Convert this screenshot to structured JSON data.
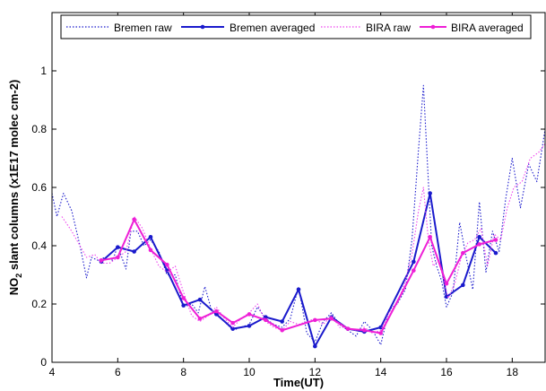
{
  "chart_data": {
    "type": "line",
    "xlabel": "Time(UT)",
    "ylabel_main": "NO",
    "ylabel_sub": "2",
    "ylabel_rest": " slant columns (x1E17 molec cm-2)",
    "xlim": [
      4,
      19
    ],
    "ylim": [
      0,
      1.2
    ],
    "xticks": [
      4,
      6,
      8,
      10,
      12,
      14,
      16,
      18
    ],
    "yticks": [
      0,
      0.2,
      0.4,
      0.6,
      0.8,
      1
    ],
    "xtick_labels": [
      "4",
      "6",
      "8",
      "10",
      "12",
      "14",
      "16",
      "18"
    ],
    "ytick_labels": [
      "0",
      "0.2",
      "0.4",
      "0.6",
      "0.8",
      "1"
    ],
    "grid": false,
    "legend_position": "top",
    "series": [
      {
        "name": "Bremen raw",
        "color": "#1a1acc",
        "style": "dotted",
        "marker": false,
        "x": [
          4.0,
          4.15,
          4.35,
          4.6,
          4.85,
          5.05,
          5.2,
          5.4,
          5.6,
          5.85,
          6.0,
          6.25,
          6.4,
          6.6,
          6.8,
          7.0,
          7.25,
          7.5,
          7.75,
          8.0,
          8.25,
          8.45,
          8.65,
          8.85,
          9.0,
          9.25,
          9.5,
          9.75,
          10.0,
          10.25,
          10.5,
          10.75,
          11.0,
          11.25,
          11.5,
          11.75,
          12.0,
          12.25,
          12.5,
          12.75,
          13.0,
          13.25,
          13.5,
          13.75,
          14.0,
          14.25,
          14.5,
          14.75,
          14.95,
          15.15,
          15.3,
          15.45,
          15.55,
          15.7,
          15.85,
          16.0,
          16.2,
          16.4,
          16.6,
          16.8,
          17.0,
          17.2,
          17.4,
          17.6,
          17.8,
          18.0,
          18.25,
          18.5,
          18.75,
          19.0
        ],
        "y": [
          0.58,
          0.5,
          0.58,
          0.52,
          0.4,
          0.29,
          0.36,
          0.35,
          0.36,
          0.35,
          0.4,
          0.32,
          0.45,
          0.45,
          0.4,
          0.42,
          0.38,
          0.3,
          0.3,
          0.19,
          0.2,
          0.17,
          0.26,
          0.18,
          0.17,
          0.14,
          0.11,
          0.12,
          0.13,
          0.19,
          0.15,
          0.13,
          0.12,
          0.15,
          0.26,
          0.1,
          0.07,
          0.14,
          0.17,
          0.13,
          0.11,
          0.09,
          0.14,
          0.11,
          0.06,
          0.18,
          0.2,
          0.25,
          0.42,
          0.73,
          0.95,
          0.62,
          0.4,
          0.33,
          0.28,
          0.19,
          0.24,
          0.48,
          0.36,
          0.25,
          0.55,
          0.31,
          0.45,
          0.38,
          0.56,
          0.7,
          0.53,
          0.68,
          0.62,
          0.8
        ]
      },
      {
        "name": "Bremen averaged",
        "color": "#1a1acc",
        "style": "solid",
        "marker": true,
        "x": [
          5.5,
          6.0,
          6.5,
          7.0,
          7.5,
          8.0,
          8.5,
          9.0,
          9.5,
          10.0,
          10.5,
          11.0,
          11.5,
          12.0,
          12.5,
          13.0,
          13.5,
          14.0,
          15.0,
          15.5,
          16.0,
          16.5,
          17.0,
          17.5
        ],
        "y": [
          0.345,
          0.395,
          0.38,
          0.43,
          0.315,
          0.195,
          0.215,
          0.165,
          0.115,
          0.125,
          0.155,
          0.14,
          0.25,
          0.055,
          0.155,
          0.115,
          0.105,
          0.12,
          0.345,
          0.58,
          0.225,
          0.265,
          0.43,
          0.375
        ]
      },
      {
        "name": "BIRA raw",
        "color": "#ee44ee",
        "style": "dotted",
        "marker": false,
        "x": [
          4.3,
          4.6,
          4.85,
          5.05,
          5.3,
          5.5,
          5.75,
          6.0,
          6.25,
          6.5,
          6.75,
          7.0,
          7.25,
          7.5,
          7.75,
          8.0,
          8.25,
          8.5,
          8.75,
          9.0,
          9.25,
          9.5,
          9.75,
          10.0,
          10.25,
          10.5,
          10.75,
          11.0,
          11.25,
          11.5,
          11.75,
          12.0,
          12.25,
          12.5,
          12.75,
          13.0,
          13.25,
          13.5,
          13.75,
          14.0,
          14.25,
          14.5,
          14.75,
          14.95,
          15.15,
          15.3,
          15.45,
          15.6,
          15.75,
          15.9,
          16.05,
          16.25,
          16.45,
          16.65,
          16.85,
          17.05,
          17.25,
          17.45,
          17.65,
          17.85,
          18.05,
          18.3,
          18.55,
          18.8,
          19.0
        ],
        "y": [
          0.5,
          0.45,
          0.4,
          0.36,
          0.37,
          0.34,
          0.34,
          0.36,
          0.38,
          0.5,
          0.46,
          0.39,
          0.33,
          0.31,
          0.33,
          0.24,
          0.16,
          0.14,
          0.16,
          0.19,
          0.15,
          0.12,
          0.15,
          0.17,
          0.2,
          0.14,
          0.12,
          0.11,
          0.14,
          0.13,
          0.14,
          0.15,
          0.13,
          0.16,
          0.12,
          0.12,
          0.11,
          0.12,
          0.1,
          0.11,
          0.17,
          0.2,
          0.28,
          0.37,
          0.52,
          0.6,
          0.42,
          0.33,
          0.35,
          0.29,
          0.22,
          0.27,
          0.36,
          0.41,
          0.42,
          0.46,
          0.33,
          0.44,
          0.42,
          0.53,
          0.6,
          0.62,
          0.7,
          0.72,
          0.75
        ]
      },
      {
        "name": "BIRA averaged",
        "color": "#ee1fd6",
        "style": "solid",
        "marker": true,
        "x": [
          5.5,
          6.0,
          6.5,
          7.0,
          7.5,
          8.0,
          8.5,
          9.0,
          9.5,
          10.0,
          10.5,
          11.0,
          12.0,
          12.5,
          13.0,
          13.5,
          14.0,
          15.0,
          15.5,
          16.0,
          16.5,
          17.0,
          17.5
        ],
        "y": [
          0.35,
          0.36,
          0.49,
          0.385,
          0.335,
          0.22,
          0.15,
          0.175,
          0.135,
          0.165,
          0.145,
          0.11,
          0.145,
          0.15,
          0.115,
          0.11,
          0.1,
          0.315,
          0.43,
          0.27,
          0.375,
          0.405,
          0.42
        ]
      }
    ]
  }
}
